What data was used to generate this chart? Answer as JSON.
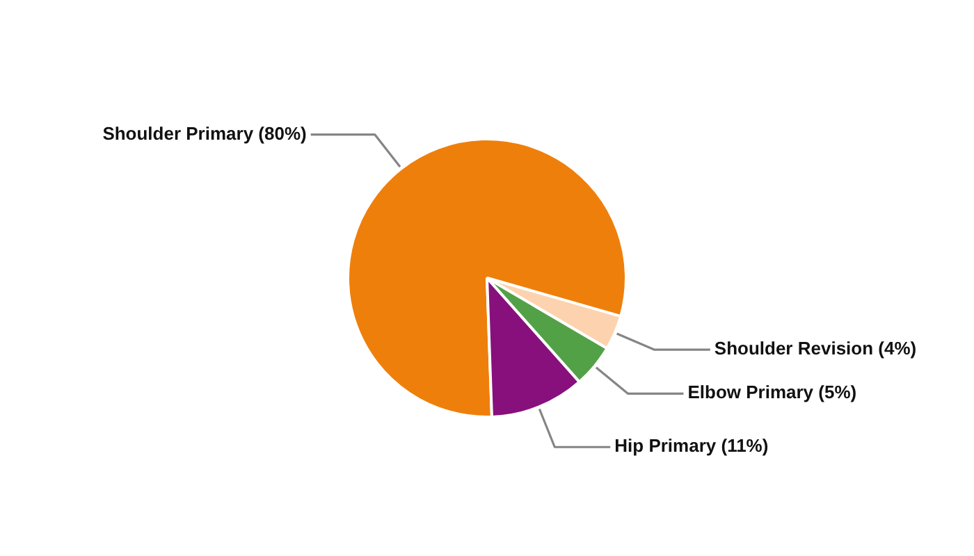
{
  "chart_data": {
    "type": "pie",
    "categories": [
      "Shoulder Primary (80%)",
      "Shoulder Revision (4%)",
      "Elbow Primary (5%)",
      "Hip Primary (11%)"
    ],
    "values": [
      80,
      4,
      5,
      11
    ],
    "colors": [
      "#ef7f0b",
      "#fcd3ae",
      "#53a147",
      "#87107c"
    ]
  }
}
